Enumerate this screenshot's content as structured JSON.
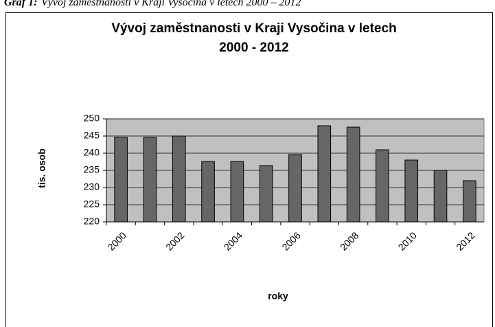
{
  "caption": {
    "label": "Graf 1:",
    "text": "Vývoj zaměstnanosti v Kraji Vysočina v letech 2000 – 2012"
  },
  "chart_data": {
    "type": "bar",
    "title": [
      "Vývoj zaměstnanosti v Kraji Vysočina v letech",
      "2000 - 2012"
    ],
    "y_label": "tis. osob",
    "x_label": "roky",
    "categories": [
      "2000",
      null,
      "2002",
      null,
      "2004",
      null,
      "2006",
      null,
      "2008",
      null,
      "2010",
      null,
      "2012"
    ],
    "values": [
      244.6,
      244.6,
      245,
      237.6,
      237.6,
      236.4,
      239.6,
      248,
      247.6,
      241,
      238,
      235,
      232
    ],
    "color": "#666666",
    "plot_background": "#c0c0c0",
    "ylim": [
      220,
      250
    ],
    "yticks": [
      220,
      225,
      230,
      235,
      240,
      245,
      250
    ],
    "grid": true
  }
}
